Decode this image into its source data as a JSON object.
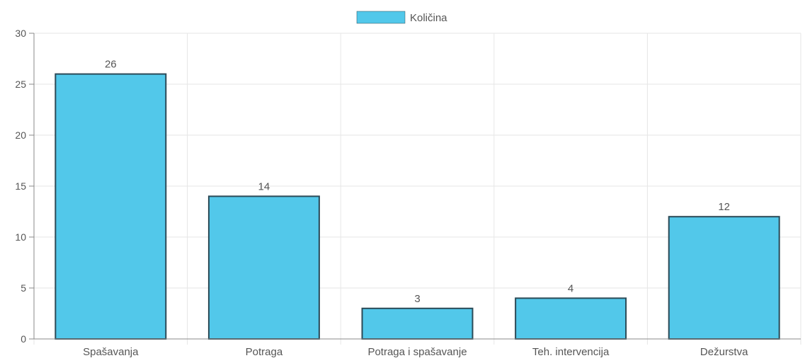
{
  "chart_data": {
    "type": "bar",
    "title": "",
    "xlabel": "",
    "ylabel": "",
    "legend": {
      "position": "top",
      "entries": [
        "Količina"
      ]
    },
    "categories": [
      "Spašavanja",
      "Potraga",
      "Potraga i spašavanje",
      "Teh. intervencija",
      "Dežurstva"
    ],
    "series": [
      {
        "name": "Količina",
        "values": [
          26,
          14,
          3,
          4,
          12
        ],
        "color": "#52c8ea"
      }
    ],
    "ylim": [
      0,
      30
    ],
    "yticks": [
      0,
      5,
      10,
      15,
      20,
      25,
      30
    ],
    "grid": true,
    "colors": {
      "bar_fill": "#52c8ea",
      "bar_border": "#2b4a57",
      "grid": "#e6e6e6",
      "axis": "#8a8a8a",
      "text": "#555555"
    }
  }
}
